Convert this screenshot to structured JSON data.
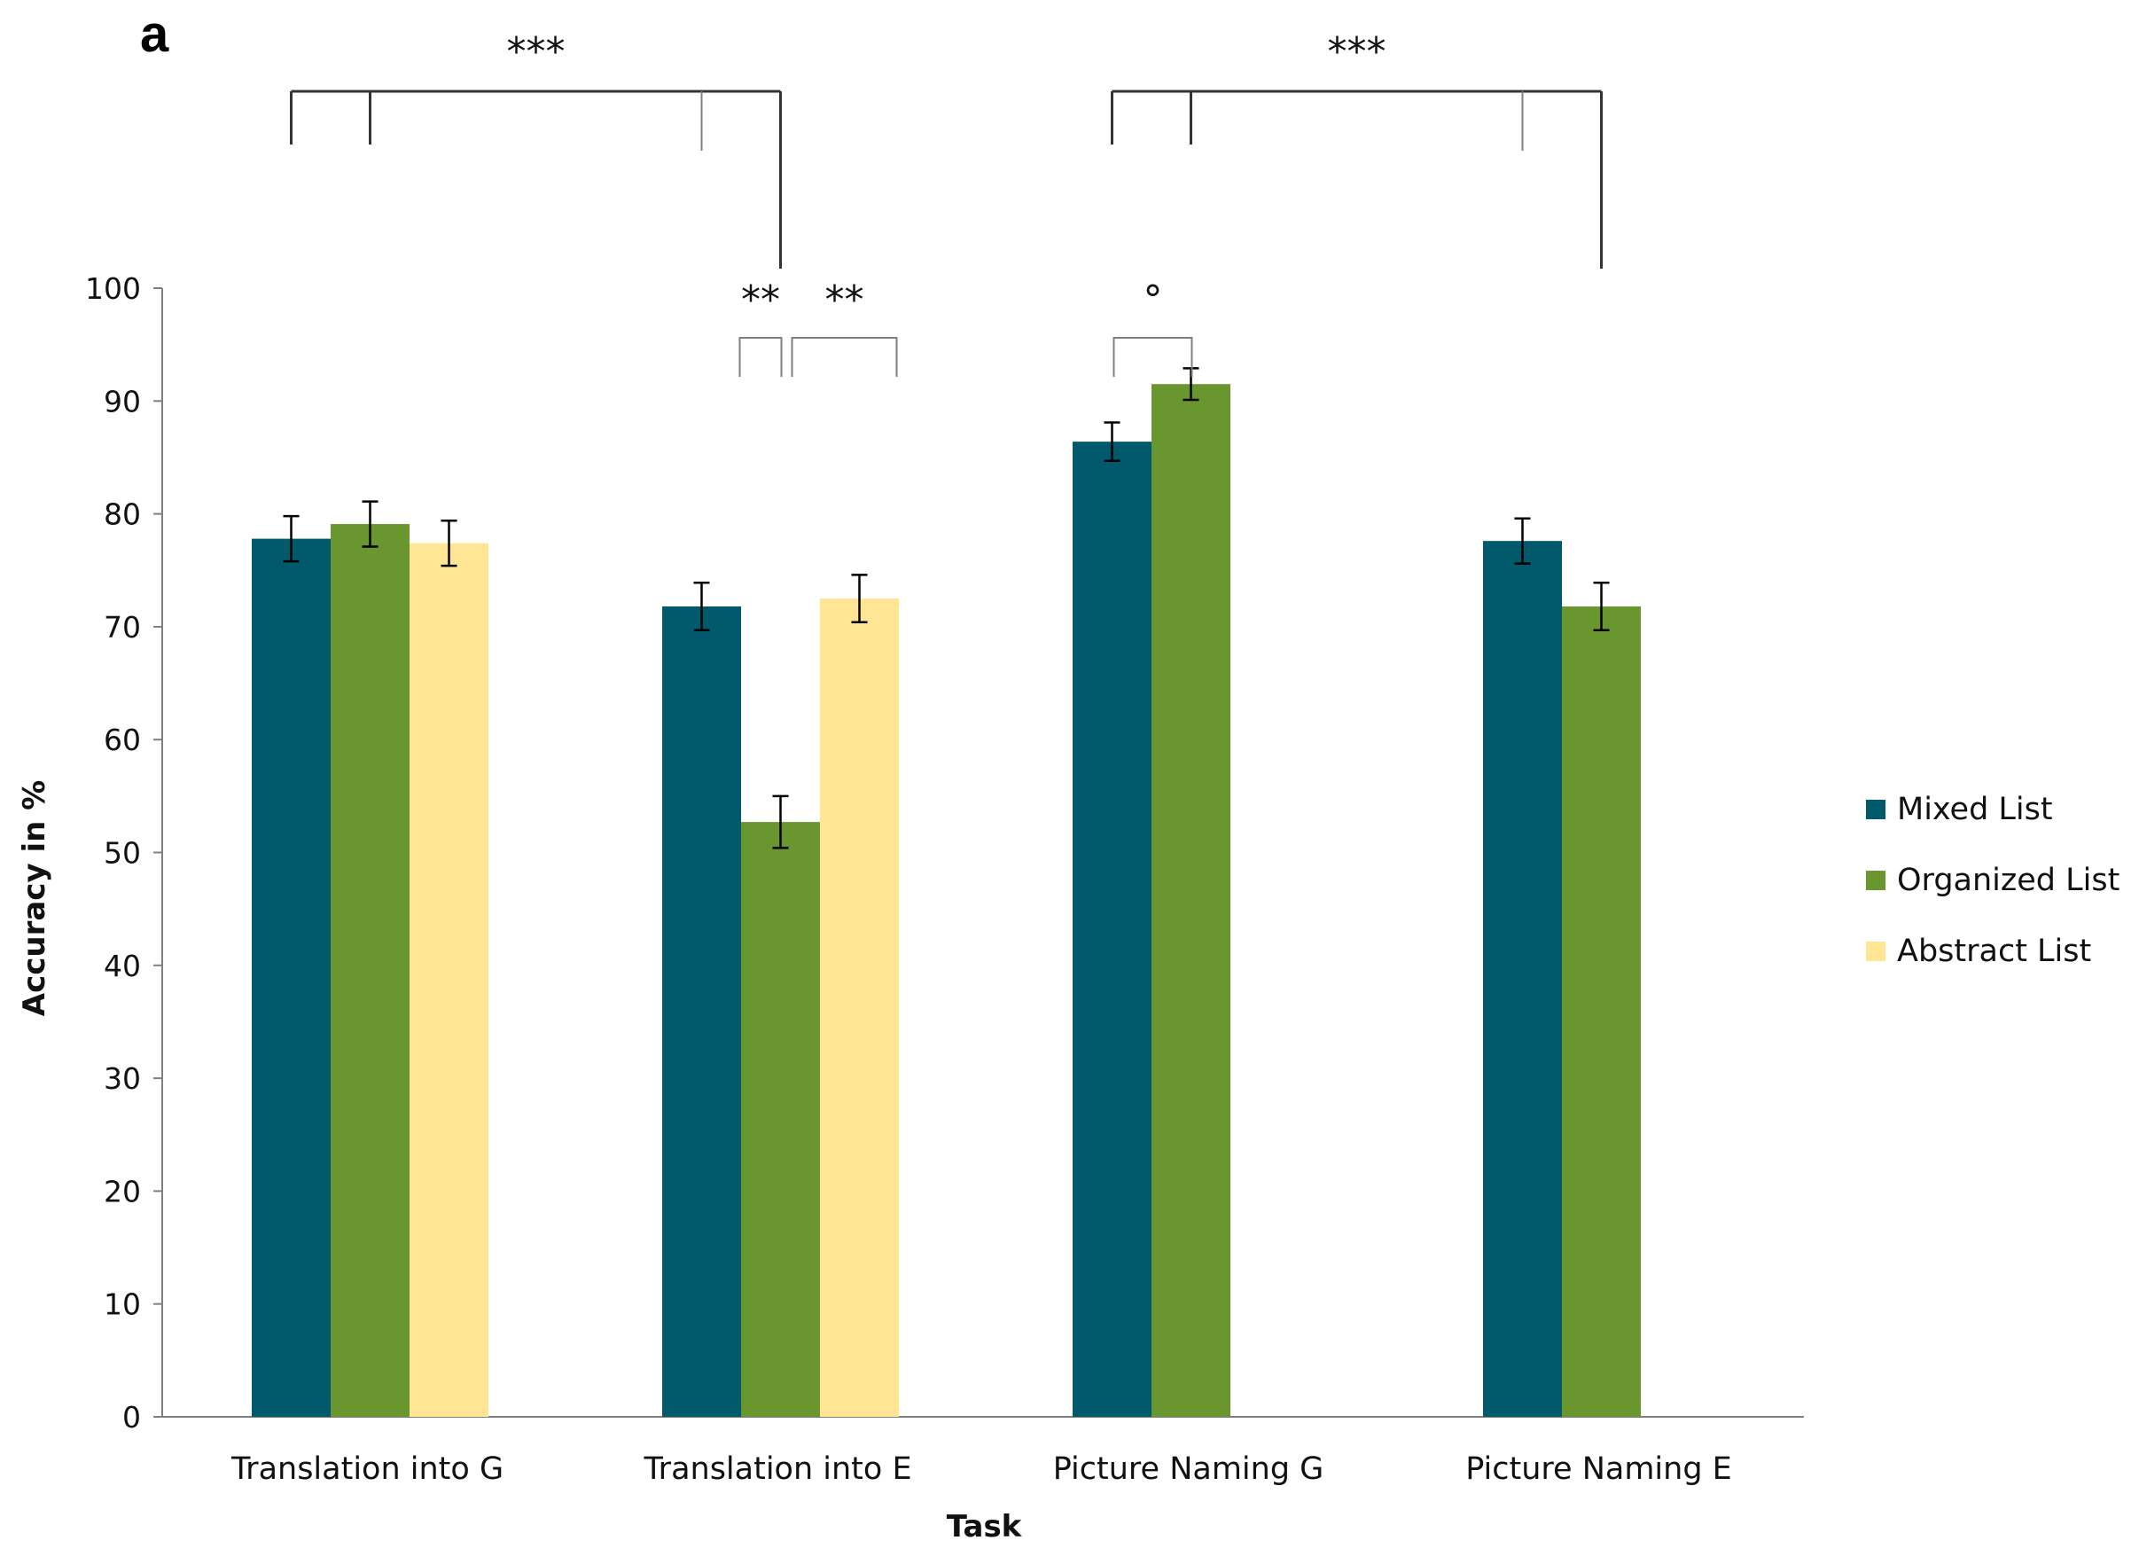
{
  "panel_label": "a",
  "chart_data": {
    "type": "bar",
    "title": "",
    "xlabel": "Task",
    "ylabel": "Accuracy in %",
    "ylim": [
      0,
      100
    ],
    "yticks": [
      0,
      10,
      20,
      30,
      40,
      50,
      60,
      70,
      80,
      90,
      100
    ],
    "grid": false,
    "legend_position": "right",
    "categories": [
      "Translation into G",
      "Translation into E",
      "Picture Naming G",
      "Picture Naming E"
    ],
    "series": [
      {
        "name": "Mixed List",
        "color": "#005A6B",
        "values": [
          77.8,
          71.8,
          86.4,
          77.6
        ],
        "errors": [
          2.0,
          2.1,
          1.7,
          2.0
        ]
      },
      {
        "name": "Organized List",
        "color": "#6A962F",
        "values": [
          79.1,
          52.7,
          91.5,
          71.8
        ],
        "errors": [
          2.0,
          2.3,
          1.4,
          2.1
        ]
      },
      {
        "name": "Abstract List",
        "color": "#FFE594",
        "values": [
          77.4,
          72.5,
          null,
          null
        ],
        "errors": [
          2.0,
          2.1,
          null,
          null
        ]
      }
    ],
    "annotations": [
      {
        "label": "***",
        "type": "group-bracket",
        "comment": "Translation into G vs Translation into E"
      },
      {
        "label": "***",
        "type": "group-bracket",
        "comment": "Picture Naming G vs Picture Naming E"
      },
      {
        "label": "**",
        "type": "pair-bracket",
        "comment": "Translation into E: Mixed vs Organized"
      },
      {
        "label": "**",
        "type": "pair-bracket",
        "comment": "Translation into E: Organized vs Abstract"
      },
      {
        "label": "°",
        "type": "pair-bracket",
        "comment": "Picture Naming G: Mixed vs Organized"
      }
    ]
  }
}
